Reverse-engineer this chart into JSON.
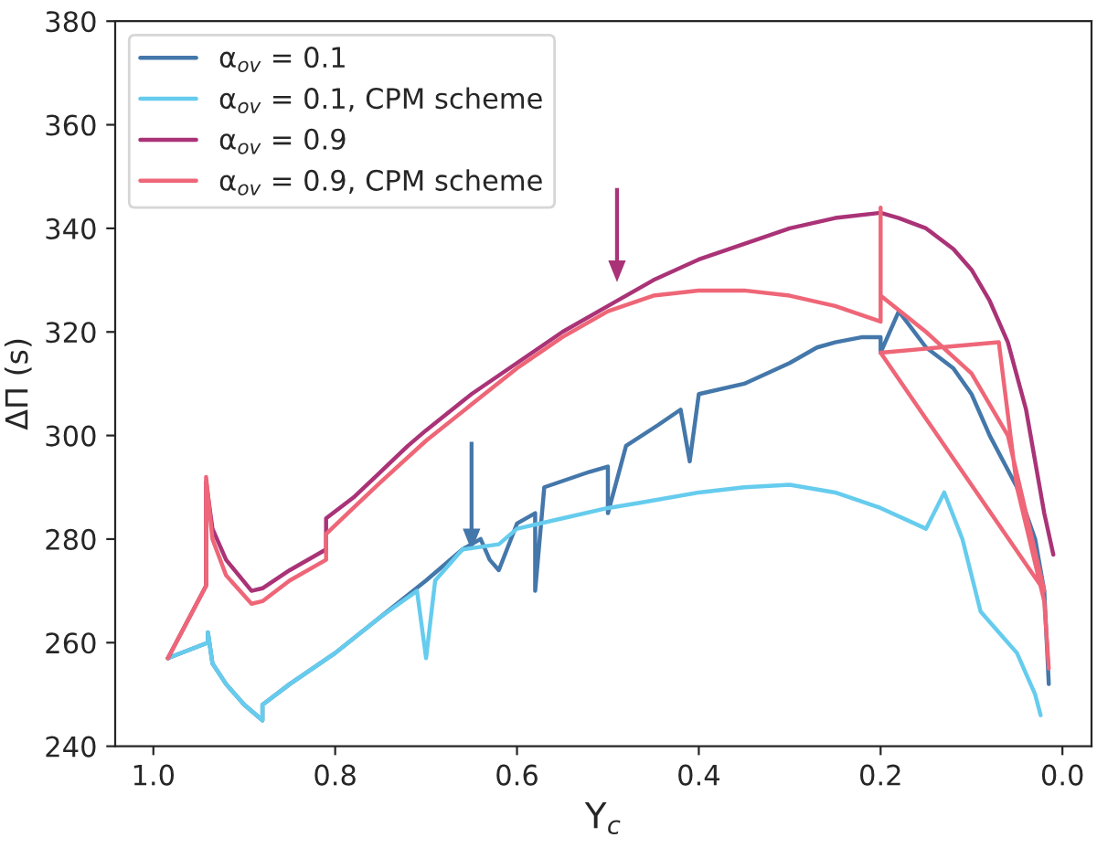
{
  "chart_data": {
    "type": "line",
    "xlabel": "Y$_{c}$",
    "ylabel": "ΔΠ (s)",
    "xlim": [
      1.042,
      -0.032
    ],
    "ylim": [
      240,
      380
    ],
    "xticks": [
      {
        "value": 1.0,
        "label": "1.0"
      },
      {
        "value": 0.8,
        "label": "0.8"
      },
      {
        "value": 0.6,
        "label": "0.6"
      },
      {
        "value": 0.4,
        "label": "0.4"
      },
      {
        "value": 0.2,
        "label": "0.2"
      },
      {
        "value": 0.0,
        "label": "0.0"
      }
    ],
    "yticks": [
      240,
      260,
      280,
      300,
      320,
      340,
      360,
      380
    ],
    "grid": false,
    "legend": "top left",
    "marker": "none",
    "line_style": "solid",
    "series": [
      {
        "name": "α$_{ov}$ = 0.1",
        "color": "#4477aa",
        "x": [
          0.984,
          0.94,
          0.94,
          0.935,
          0.92,
          0.9,
          0.88,
          0.88,
          0.85,
          0.8,
          0.75,
          0.7,
          0.66,
          0.64,
          0.63,
          0.62,
          0.6,
          0.58,
          0.58,
          0.57,
          0.52,
          0.5,
          0.5,
          0.48,
          0.445,
          0.42,
          0.41,
          0.4,
          0.35,
          0.3,
          0.27,
          0.25,
          0.22,
          0.2,
          0.2,
          0.18,
          0.15,
          0.12,
          0.1,
          0.08,
          0.05,
          0.03,
          0.02,
          0.015
        ],
        "values": [
          257,
          260,
          262,
          256,
          252,
          248,
          245,
          248,
          252,
          258,
          265,
          272,
          278,
          280,
          276,
          274,
          283,
          285,
          270,
          290,
          293,
          294,
          285,
          298,
          302,
          305,
          295,
          308,
          310,
          314,
          317,
          318,
          319,
          319,
          316,
          324,
          317,
          313,
          308,
          300,
          290,
          280,
          270,
          252
        ]
      },
      {
        "name": "α$_{ov}$ = 0.1, CPM scheme",
        "color": "#66ccee",
        "x": [
          0.984,
          0.94,
          0.94,
          0.935,
          0.92,
          0.9,
          0.88,
          0.88,
          0.85,
          0.8,
          0.75,
          0.71,
          0.7,
          0.69,
          0.66,
          0.62,
          0.6,
          0.55,
          0.5,
          0.465,
          0.4,
          0.35,
          0.3,
          0.25,
          0.2,
          0.15,
          0.13,
          0.11,
          0.09,
          0.07,
          0.05,
          0.04,
          0.03,
          0.024
        ],
        "values": [
          257,
          260,
          262,
          256,
          252,
          248,
          245,
          248,
          252,
          258,
          265,
          270,
          257,
          272,
          278,
          279,
          282,
          284,
          286,
          287,
          289,
          290,
          290.5,
          289,
          286,
          282,
          289,
          280,
          266,
          262,
          258,
          254,
          250,
          246
        ]
      },
      {
        "name": "α$_{ov}$ = 0.9",
        "color": "#aa3377",
        "x": [
          0.984,
          0.942,
          0.942,
          0.935,
          0.92,
          0.892,
          0.88,
          0.85,
          0.81,
          0.81,
          0.78,
          0.75,
          0.72,
          0.7,
          0.65,
          0.6,
          0.55,
          0.5,
          0.45,
          0.4,
          0.35,
          0.3,
          0.25,
          0.2,
          0.18,
          0.15,
          0.12,
          0.1,
          0.08,
          0.06,
          0.04,
          0.03,
          0.02,
          0.01
        ],
        "values": [
          257,
          271,
          291,
          282,
          276,
          270,
          270.5,
          274,
          278,
          284,
          288,
          293,
          298,
          301,
          308,
          314,
          320,
          325,
          330,
          334,
          337,
          340,
          342,
          343,
          342,
          340,
          336,
          332,
          326,
          318,
          305,
          295,
          285,
          277
        ]
      },
      {
        "name": "α$_{ov}$ = 0.9, CPM scheme",
        "color": "#ee6677",
        "x": [
          0.984,
          0.942,
          0.942,
          0.935,
          0.92,
          0.892,
          0.88,
          0.85,
          0.81,
          0.81,
          0.78,
          0.75,
          0.7,
          0.65,
          0.6,
          0.55,
          0.5,
          0.45,
          0.4,
          0.35,
          0.3,
          0.25,
          0.2,
          0.2,
          0.2,
          0.15,
          0.1,
          0.06,
          0.04,
          0.02,
          0.2,
          0.07,
          0.05,
          0.02,
          0.015
        ],
        "values": [
          257,
          271,
          292,
          280,
          273,
          267.5,
          268,
          272,
          276,
          281,
          286,
          291,
          299,
          306,
          313,
          319,
          324,
          327,
          328,
          328,
          327,
          325,
          322,
          344,
          327,
          320,
          312,
          300,
          285,
          270,
          316,
          318,
          290,
          268,
          255
        ]
      }
    ]
  }
}
